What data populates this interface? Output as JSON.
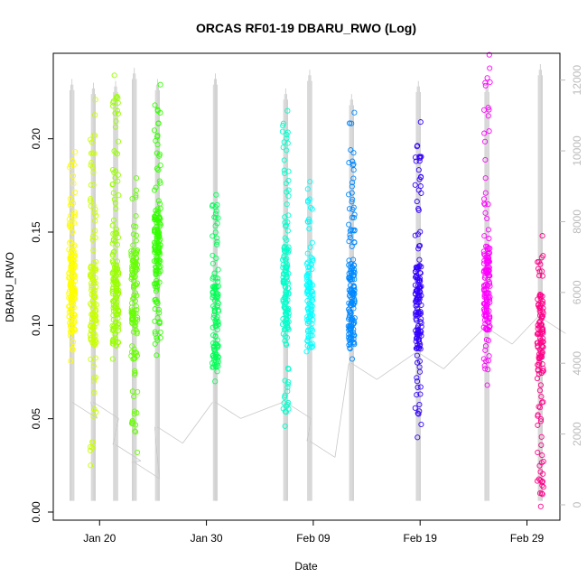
{
  "chart_data": {
    "type": "scatter",
    "title": "ORCAS RF01-19 DBARU_RWO (Log)",
    "xlabel": "Date",
    "ylabel": "DBARU_RWO",
    "x_ticks": [
      "Jan 20",
      "Jan 30",
      "Feb 09",
      "Feb 19",
      "Feb 29"
    ],
    "y_ticks": [
      "0.00",
      "0.05",
      "0.10",
      "0.15",
      "0.20"
    ],
    "y2_ticks": [
      "0",
      "2000",
      "4000",
      "6000",
      "8000",
      "10000",
      "12000"
    ],
    "ylim": [
      0,
      0.24
    ],
    "y2lim": [
      0,
      12400
    ],
    "xlim": [
      "2016-01-15T16:00",
      "2016-03-03T02:00"
    ],
    "grid": false,
    "series": [
      {
        "color": "#ffff00",
        "date": "2016-01-17T10:00",
        "y_min": 0.081,
        "y_max": 0.193,
        "y_median": 0.118,
        "n": 150,
        "line_top": 0.232,
        "line_bottom": 0.006,
        "alt_low": 2900
      },
      {
        "color": "#c8ff00",
        "date": "2016-01-19T10:00",
        "y_min": 0.025,
        "y_max": 0.221,
        "y_median": 0.112,
        "n": 130,
        "line_top": 0.23,
        "line_bottom": 0.006,
        "alt_low": 2900
      },
      {
        "color": "#99ff00",
        "date": "2016-01-21T12:00",
        "y_min": 0.082,
        "y_max": 0.234,
        "y_median": 0.112,
        "n": 150,
        "line_top": 0.231,
        "line_bottom": 0.006,
        "alt_low": 1700
      },
      {
        "color": "#66ff00",
        "date": "2016-01-23T06:00",
        "y_min": 0.032,
        "y_max": 0.179,
        "y_median": 0.118,
        "n": 120,
        "line_top": 0.238,
        "line_bottom": 0.006,
        "alt_low": 1200
      },
      {
        "color": "#33ff00",
        "date": "2016-01-25T10:00",
        "y_min": 0.084,
        "y_max": 0.229,
        "y_median": 0.14,
        "n": 150,
        "line_top": 0.232,
        "line_bottom": 0.006,
        "alt_low": 2200
      },
      {
        "color": "#00ff55",
        "date": "2016-01-30T20:00",
        "y_min": 0.07,
        "y_max": 0.17,
        "y_median": 0.1,
        "n": 110,
        "line_top": 0.235,
        "line_bottom": 0.006,
        "alt_low": 2900
      },
      {
        "color": "#00ffcc",
        "date": "2016-02-06T10:00",
        "y_min": 0.046,
        "y_max": 0.215,
        "y_median": 0.12,
        "n": 150,
        "line_top": 0.227,
        "line_bottom": 0.006,
        "alt_low": 2900
      },
      {
        "color": "#00ffff",
        "date": "2016-02-08T16:00",
        "y_min": 0.086,
        "y_max": 0.177,
        "y_median": 0.11,
        "n": 100,
        "line_top": 0.237,
        "line_bottom": 0.006,
        "alt_low": 1800
      },
      {
        "color": "#0088ff",
        "date": "2016-02-12T14:00",
        "y_min": 0.082,
        "y_max": 0.214,
        "y_median": 0.11,
        "n": 150,
        "line_top": 0.224,
        "line_bottom": 0.006,
        "alt_low": 4000
      },
      {
        "color": "#3300ff",
        "date": "2016-02-18T20:00",
        "y_min": 0.04,
        "y_max": 0.209,
        "y_median": 0.11,
        "n": 150,
        "line_top": 0.231,
        "line_bottom": 0.006,
        "alt_low": 4300
      },
      {
        "color": "#ff00ff",
        "date": "2016-02-25T06:00",
        "y_min": 0.068,
        "y_max": 0.245,
        "y_median": 0.12,
        "n": 150,
        "line_top": 0.231,
        "line_bottom": 0.006,
        "alt_low": 5000
      },
      {
        "color": "#ff0088",
        "date": "2016-03-01T06:00",
        "y_min": 0.003,
        "y_max": 0.148,
        "y_median": 0.095,
        "n": 130,
        "line_top": 0.24,
        "line_bottom": 0.006,
        "alt_low": 5300
      }
    ],
    "altitude_line_color": "#c8c8c8"
  }
}
